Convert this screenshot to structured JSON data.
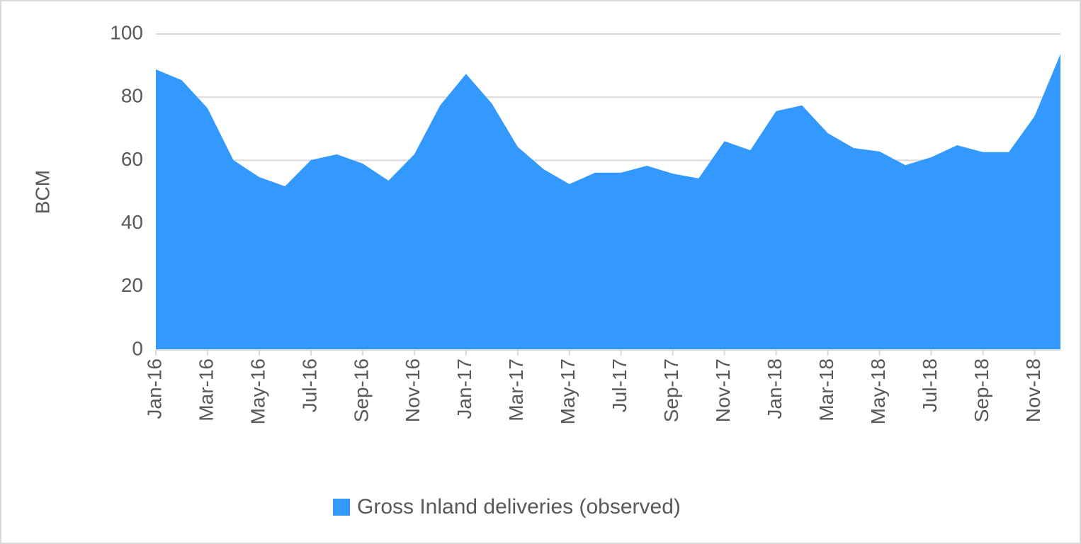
{
  "chart_data": {
    "type": "area",
    "y_label": "BCM",
    "categories": [
      "Jan-16",
      null,
      "Mar-16",
      null,
      "May-16",
      null,
      "Jul-16",
      null,
      "Sep-16",
      null,
      "Nov-16",
      null,
      "Jan-17",
      null,
      "Mar-17",
      null,
      "May-17",
      null,
      "Jul-17",
      null,
      "Sep-17",
      null,
      "Nov-17",
      null,
      "Jan-18",
      null,
      "Mar-18",
      null,
      "May-18",
      null,
      "Jul-18",
      null,
      "Sep-18",
      null,
      "Nov-18",
      null
    ],
    "series": [
      {
        "name": "Gross Inland deliveries (observed)",
        "color": "#3399ff",
        "values": [
          88.8,
          85.4,
          76.5,
          60.1,
          54.7,
          51.8,
          60.1,
          61.9,
          59.0,
          53.6,
          61.9,
          77.4,
          87.4,
          78.0,
          64.3,
          57.2,
          52.5,
          56.1,
          56.1,
          58.3,
          55.8,
          54.3,
          66.1,
          63.2,
          75.6,
          77.4,
          68.6,
          63.9,
          62.8,
          58.5,
          61.0,
          64.8,
          62.6,
          62.6,
          74.0,
          93.7
        ]
      }
    ],
    "ylim": [
      0,
      100
    ],
    "yticks": [
      0,
      20,
      40,
      60,
      80,
      100
    ],
    "grid": true,
    "legend": "bottom"
  }
}
